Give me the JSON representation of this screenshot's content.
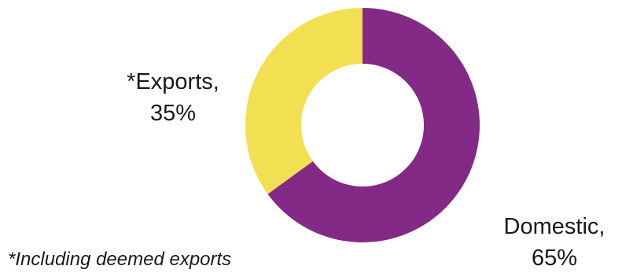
{
  "chart_data": {
    "type": "pie",
    "style": "donut",
    "categories": [
      "Domestic",
      "*Exports"
    ],
    "values": [
      65,
      35
    ],
    "unit": "%",
    "colors": [
      "#822A86",
      "#F2DF52"
    ],
    "data_labels": [
      {
        "name": "Domestic,",
        "value": "65%"
      },
      {
        "name": "*Exports,",
        "value": "35%"
      }
    ],
    "footnote": "*Including deemed exports",
    "legend": "none"
  }
}
